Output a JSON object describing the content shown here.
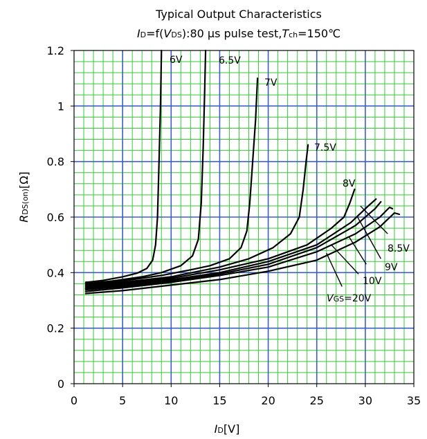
{
  "chart_data": {
    "type": "line",
    "title": "Typical Output Characteristics",
    "subtitle": {
      "id_symbol": "I",
      "id_sub": "D",
      "mid": "=f(",
      "vds_symbol": "V",
      "vds_sub": "DS",
      "cond": "):80 µs pulse test,",
      "tch_symbol": "T",
      "tch_sub": "ch",
      "tch_value": "=150℃"
    },
    "xlabel": {
      "symbol": "I",
      "sub": "D",
      "unit": "[V]"
    },
    "ylabel": {
      "symbol": "R",
      "sub": "DS(on)",
      "unit": "[Ω]"
    },
    "xlim": [
      0,
      35
    ],
    "ylim": [
      0,
      1.2
    ],
    "xticks": [
      "0",
      "5",
      "10",
      "15",
      "20",
      "25",
      "30",
      "35"
    ],
    "yticks": [
      "0",
      "0.2",
      "0.4",
      "0.6",
      "0.8",
      "1",
      "1.2"
    ],
    "grid": {
      "major": true,
      "minor": true,
      "major_color": "#3b5fc0",
      "minor_color": "#33cc33"
    },
    "line_color": "#000000",
    "series": [
      {
        "name": "6V",
        "points": [
          [
            1.2,
            0.365
          ],
          [
            3,
            0.372
          ],
          [
            5,
            0.385
          ],
          [
            6.5,
            0.398
          ],
          [
            7.5,
            0.415
          ],
          [
            8.1,
            0.445
          ],
          [
            8.4,
            0.5
          ],
          [
            8.6,
            0.6
          ],
          [
            8.75,
            0.8
          ],
          [
            8.9,
            1.0
          ],
          [
            9.0,
            1.2
          ]
        ]
      },
      {
        "name": "6.5V",
        "points": [
          [
            1.2,
            0.36
          ],
          [
            4,
            0.37
          ],
          [
            7,
            0.385
          ],
          [
            9,
            0.4
          ],
          [
            11,
            0.425
          ],
          [
            12.2,
            0.46
          ],
          [
            12.8,
            0.52
          ],
          [
            13.1,
            0.65
          ],
          [
            13.3,
            0.85
          ],
          [
            13.45,
            1.05
          ],
          [
            13.55,
            1.2
          ]
        ]
      },
      {
        "name": "7V",
        "points": [
          [
            1.2,
            0.355
          ],
          [
            5,
            0.37
          ],
          [
            9,
            0.39
          ],
          [
            12,
            0.41
          ],
          [
            14,
            0.425
          ],
          [
            16,
            0.45
          ],
          [
            17.2,
            0.49
          ],
          [
            17.8,
            0.55
          ],
          [
            18.1,
            0.65
          ],
          [
            18.4,
            0.8
          ],
          [
            18.7,
            0.95
          ],
          [
            18.9,
            1.1
          ]
        ]
      },
      {
        "name": "7.5V",
        "points": [
          [
            1.2,
            0.35
          ],
          [
            5,
            0.365
          ],
          [
            10,
            0.385
          ],
          [
            15,
            0.42
          ],
          [
            18,
            0.45
          ],
          [
            20.5,
            0.49
          ],
          [
            22.3,
            0.54
          ],
          [
            23.2,
            0.6
          ],
          [
            23.6,
            0.7
          ],
          [
            23.9,
            0.8
          ],
          [
            24.1,
            0.86
          ]
        ]
      },
      {
        "name": "8V",
        "points": [
          [
            1.2,
            0.345
          ],
          [
            5,
            0.36
          ],
          [
            10,
            0.38
          ],
          [
            15,
            0.41
          ],
          [
            20,
            0.45
          ],
          [
            24,
            0.5
          ],
          [
            26.5,
            0.56
          ],
          [
            27.8,
            0.6
          ],
          [
            28.4,
            0.65
          ],
          [
            28.9,
            0.7
          ]
        ]
      },
      {
        "name": "8.5V",
        "points": [
          [
            1.2,
            0.342
          ],
          [
            5,
            0.355
          ],
          [
            10,
            0.375
          ],
          [
            15,
            0.4
          ],
          [
            20,
            0.44
          ],
          [
            25,
            0.5
          ],
          [
            28.5,
            0.58
          ],
          [
            30.3,
            0.64
          ],
          [
            31.1,
            0.665
          ]
        ]
      },
      {
        "name": "9V",
        "points": [
          [
            1.2,
            0.338
          ],
          [
            5,
            0.35
          ],
          [
            10,
            0.37
          ],
          [
            15,
            0.395
          ],
          [
            20,
            0.43
          ],
          [
            25,
            0.49
          ],
          [
            29,
            0.57
          ],
          [
            31,
            0.63
          ],
          [
            31.6,
            0.655
          ]
        ]
      },
      {
        "name": "10V",
        "points": [
          [
            1.2,
            0.332
          ],
          [
            5,
            0.345
          ],
          [
            10,
            0.365
          ],
          [
            15,
            0.39
          ],
          [
            20,
            0.42
          ],
          [
            25,
            0.475
          ],
          [
            29,
            0.54
          ],
          [
            31.5,
            0.6
          ],
          [
            32.5,
            0.635
          ],
          [
            32.8,
            0.63
          ]
        ]
      },
      {
        "name": "VGS=20V",
        "points": [
          [
            1.2,
            0.325
          ],
          [
            5,
            0.335
          ],
          [
            10,
            0.355
          ],
          [
            15,
            0.375
          ],
          [
            20,
            0.405
          ],
          [
            25,
            0.445
          ],
          [
            29,
            0.51
          ],
          [
            31.5,
            0.565
          ],
          [
            33,
            0.615
          ],
          [
            33.5,
            0.61
          ]
        ]
      }
    ],
    "annotations": {
      "v6": "6V",
      "v65": "6.5V",
      "v7": "7V",
      "v75": "7.5V",
      "v8": "8V",
      "v85": "8.5V",
      "v9": "9V",
      "v10": "10V",
      "vgs_symbol": "V",
      "vgs_sub": "GS",
      "vgs_value": "=20V"
    }
  }
}
